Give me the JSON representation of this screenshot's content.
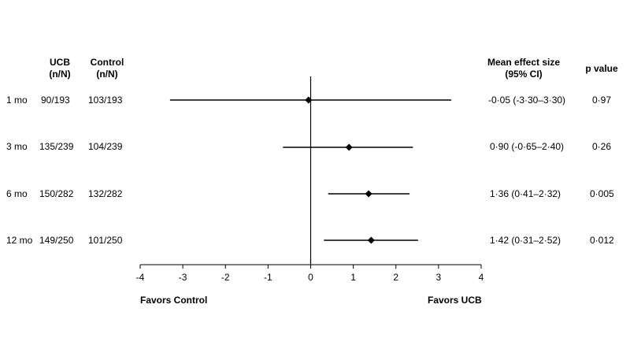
{
  "columns": {
    "ucb_header": [
      "UCB",
      "(n/N)"
    ],
    "control_header": [
      "Control",
      "(n/N)"
    ],
    "effect_header": [
      "Mean effect size",
      "(95% CI)"
    ],
    "p_header": "p value"
  },
  "rows": [
    {
      "label": "1 mo",
      "ucb": "90/193",
      "control": "103/193",
      "effect": "-0·05 (-3·30–3·30)",
      "p": "0·97"
    },
    {
      "label": "3 mo",
      "ucb": "135/239",
      "control": "104/239",
      "effect": "0·90 (-0·65–2·40)",
      "p": "0·26"
    },
    {
      "label": "6 mo",
      "ucb": "150/282",
      "control": "132/282",
      "effect": "1·36 (0·41–2·32)",
      "p": "0·005"
    },
    {
      "label": "12 mo",
      "ucb": "149/250",
      "control": "101/250",
      "effect": "1·42 (0·31–2·52)",
      "p": "0·012"
    }
  ],
  "footer": {
    "left": "Favors Control",
    "right": "Favors UCB"
  },
  "chart_data": {
    "type": "forest",
    "xlim": [
      -4,
      4
    ],
    "xticks": [
      -4,
      -3,
      -2,
      -1,
      0,
      1,
      2,
      3,
      4
    ],
    "reference_line": 0,
    "points": [
      {
        "label": "1 mo",
        "estimate": -0.05,
        "lower": -3.3,
        "upper": 3.3
      },
      {
        "label": "3 mo",
        "estimate": 0.9,
        "lower": -0.65,
        "upper": 2.4
      },
      {
        "label": "6 mo",
        "estimate": 1.36,
        "lower": 0.41,
        "upper": 2.32
      },
      {
        "label": "12 mo",
        "estimate": 1.42,
        "lower": 0.31,
        "upper": 2.52
      }
    ],
    "marker": "diamond",
    "colors": {
      "line": "#000000",
      "marker": "#000000"
    }
  }
}
